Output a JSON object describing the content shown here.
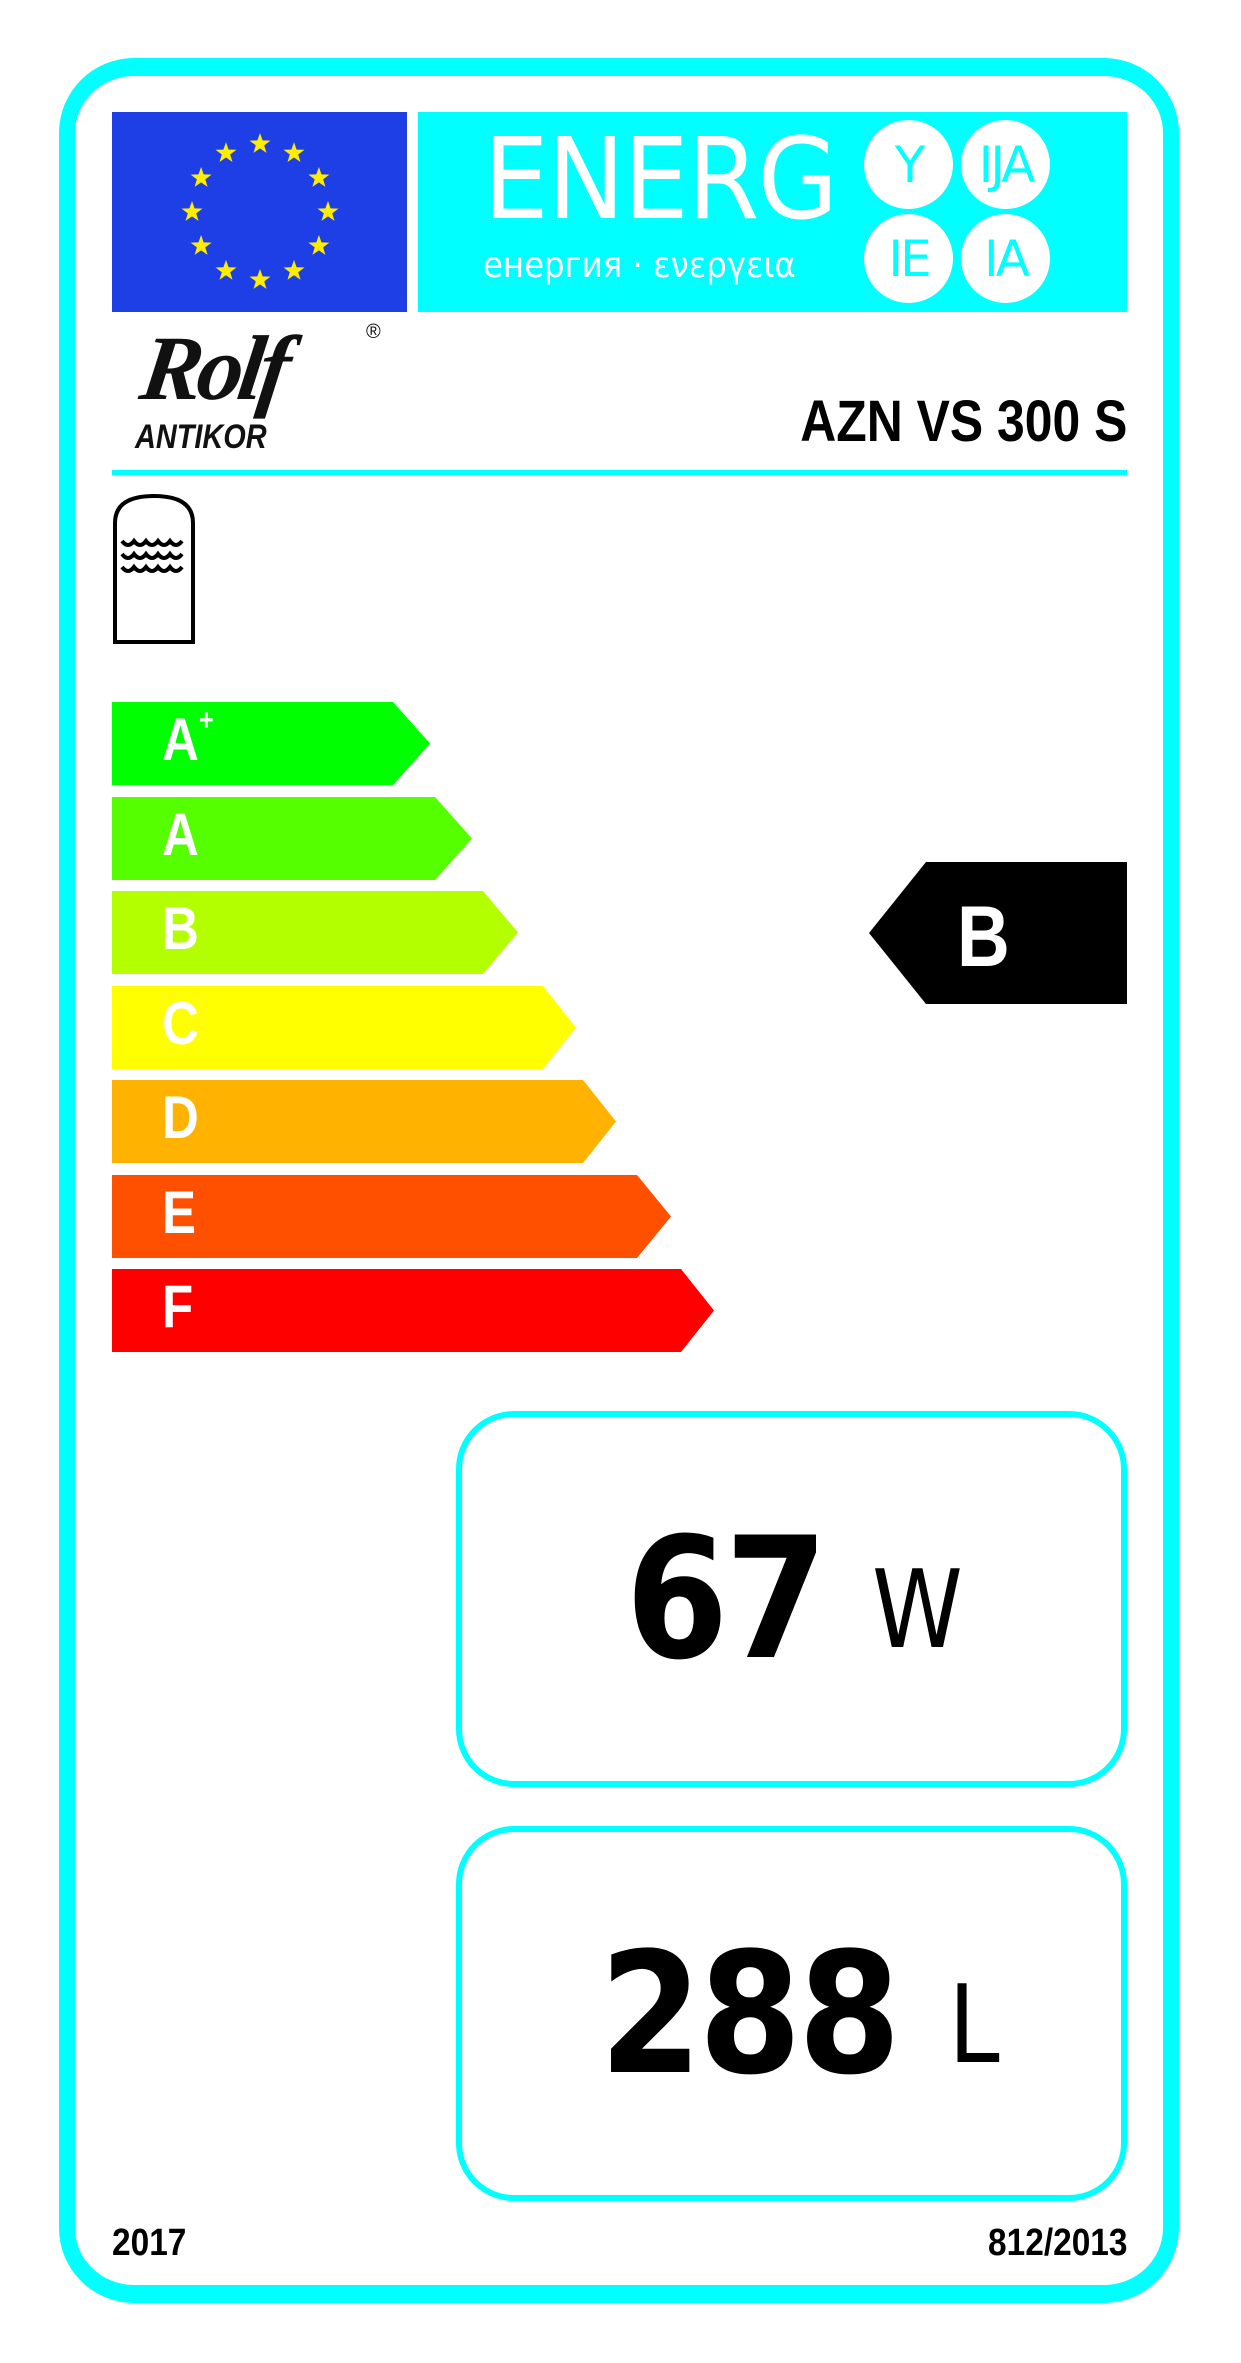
{
  "colors": {
    "frame": "#00FFFF",
    "eu_blue": "#1F3FE6",
    "eu_star": "#FFED00",
    "selected_rating": "#000000"
  },
  "header": {
    "energy_word": "ENERG",
    "energy_subtitle": "енергия · ενεργεια",
    "suffixes": [
      "Y",
      "IJA",
      "IE",
      "IA"
    ]
  },
  "brand": {
    "logo_text": "Rolf",
    "logo_sub": "ANTIKOR",
    "registered": "®"
  },
  "model": "AZN VS 300 S",
  "product_icon": "water-heater-tank-icon",
  "scale": [
    {
      "letter": "A",
      "sup": "+",
      "color": "#00FF00"
    },
    {
      "letter": "A",
      "sup": "",
      "color": "#55FF00"
    },
    {
      "letter": "B",
      "sup": "",
      "color": "#B3FF00"
    },
    {
      "letter": "C",
      "sup": "",
      "color": "#FFFF00"
    },
    {
      "letter": "D",
      "sup": "",
      "color": "#FFB300"
    },
    {
      "letter": "E",
      "sup": "",
      "color": "#FF5000"
    },
    {
      "letter": "F",
      "sup": "",
      "color": "#FF0000"
    }
  ],
  "rating": {
    "class": "B"
  },
  "standing_loss": {
    "value": "67",
    "unit": "W"
  },
  "storage_volume": {
    "value": "288",
    "unit": "L"
  },
  "footer": {
    "year": "2017",
    "regulation": "812/2013"
  }
}
